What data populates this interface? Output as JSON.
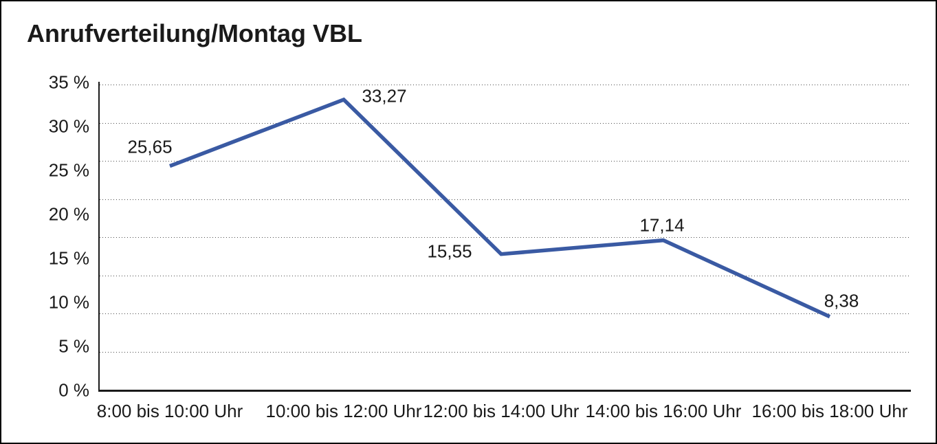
{
  "window": {
    "background": "#ffffff",
    "border_color": "#000000"
  },
  "title": "Anrufverteilung/Montag VBL",
  "chart_data": {
    "type": "line",
    "title": "Anrufverteilung/Montag VBL",
    "categories": [
      "8:00 bis 10:00 Uhr",
      "10:00 bis 12:00 Uhr",
      "12:00 bis 14:00 Uhr",
      "14:00 bis 16:00 Uhr",
      "16:00 bis 18:00 Uhr"
    ],
    "series": [
      {
        "name": "Anrufverteilung Montag VBL",
        "values": [
          25.65,
          33.27,
          15.55,
          17.14,
          8.38
        ]
      }
    ],
    "value_labels": [
      "25,65",
      "33,27",
      "15,55",
      "17,14",
      "8,38"
    ],
    "y_ticks": [
      "35 %",
      "30 %",
      "25 %",
      "20 %",
      "15 %",
      "10 %",
      "5 %",
      "0 %"
    ],
    "y_tick_values": [
      35,
      30,
      25,
      20,
      15,
      10,
      5,
      0
    ],
    "ylim": [
      0,
      35
    ],
    "xlabel": "",
    "ylabel": "",
    "legend": "none",
    "markers": "none",
    "grid": "horizontal-dotted",
    "line_color": "#3A5AA3",
    "text_color": "#1a1a1a"
  }
}
